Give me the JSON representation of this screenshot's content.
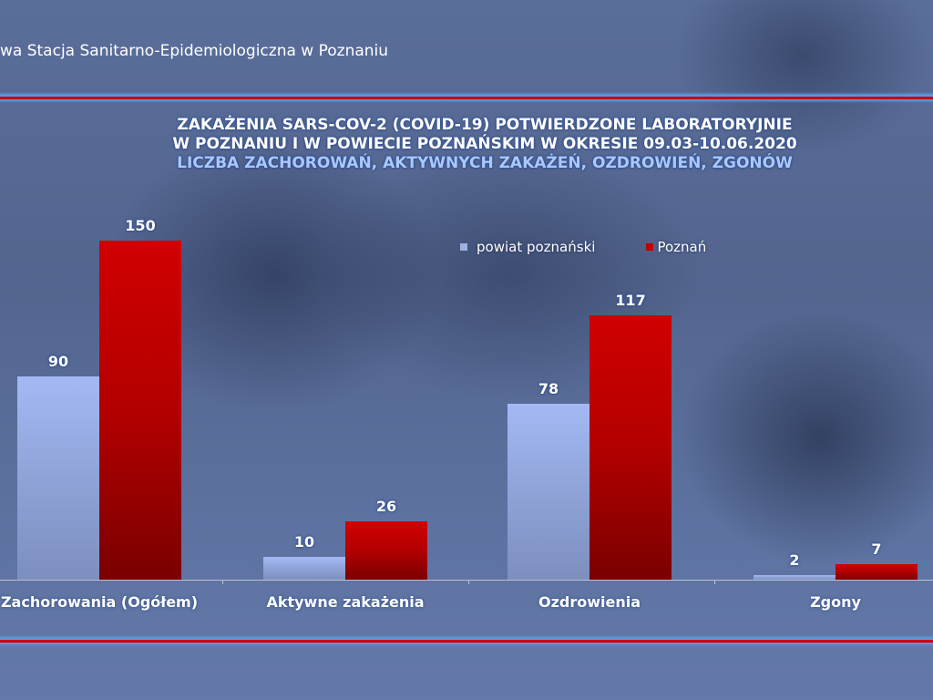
{
  "header": {
    "title": "wa Stacja Sanitarno-Epidemiologiczna w Poznaniu"
  },
  "chart_title": {
    "line1": "ZAKAŻENIA SARS-COV-2 (COVID-19) POTWIERDZONE LABORATORYJNIE",
    "line2": "W POZNANIU I W POWIECIE POZNAŃSKIM W OKRESIE 09.03-10.06.2020",
    "line3": "LICZBA ZACHOROWAŃ, AKTYWNYCH ZAKAŻEŃ, OZDROWIEŃ, ZGONÓW"
  },
  "legend": [
    {
      "label": "powiat poznański",
      "color": "#9db0e0"
    },
    {
      "label": "Poznań",
      "color": "#c00000"
    }
  ],
  "chart_data": {
    "type": "bar",
    "title": "ZAKAŻENIA SARS-COV-2 (COVID-19) POTWIERDZONE LABORATORYJNIE W POZNANIU I W POWIECIE POZNAŃSKIM W OKRESIE 09.03-10.06.2020 — LICZBA ZACHOROWAŃ, AKTYWNYCH ZAKAŻEŃ, OZDROWIEŃ, ZGONÓW",
    "categories": [
      "Zachorowania (Ogółem)",
      "Aktywne zakażenia",
      "Ozdrowienia",
      "Zgony"
    ],
    "series": [
      {
        "name": "powiat poznański",
        "values": [
          90,
          10,
          78,
          2
        ],
        "color": "#9db0e0"
      },
      {
        "name": "Poznań",
        "values": [
          150,
          26,
          117,
          7
        ],
        "color": "#c00000"
      }
    ],
    "xlabel": "",
    "ylabel": "",
    "ylim": [
      0,
      150
    ],
    "grid": false,
    "legend_position": "top-right",
    "data_labels": true
  }
}
